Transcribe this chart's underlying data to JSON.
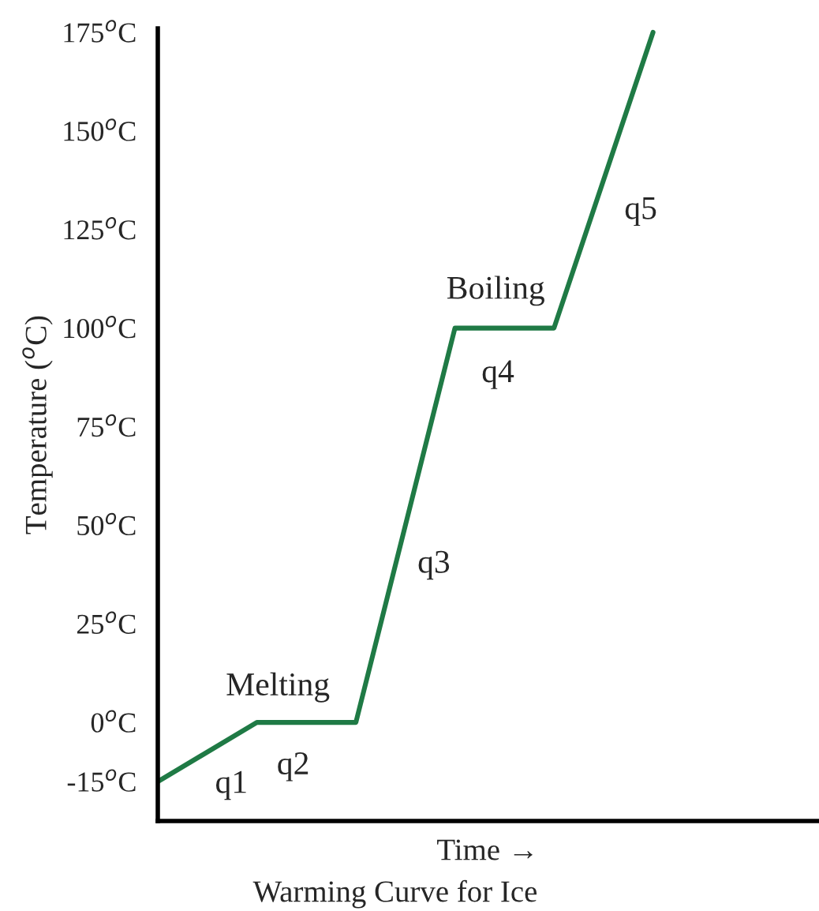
{
  "chart_data": {
    "type": "line",
    "title": "Warming Curve for Ice",
    "xlabel": "Time →",
    "ylabel": "Temperature ($^{o}$C)",
    "categories": [
      null,
      null,
      null,
      null,
      null,
      null
    ],
    "series": [
      {
        "color": "#1f7a45",
        "values": [
          -15,
          0,
          0,
          100,
          100,
          175
        ]
      }
    ],
    "ylim": [
      -25,
      176
    ],
    "yticks": [
      {
        "value": -15,
        "label": "-15$^{o}$C"
      },
      {
        "value": 0,
        "label": "0$^{o}$C"
      },
      {
        "value": 25,
        "label": "25$^{o}$C"
      },
      {
        "value": 50,
        "label": "50$^{o}$C"
      },
      {
        "value": 75,
        "label": "75$^{o}$C"
      },
      {
        "value": 100,
        "label": "100$^{o}$C"
      },
      {
        "value": 125,
        "label": "125$^{o}$C"
      },
      {
        "value": 150,
        "label": "150$^{o}$C"
      },
      {
        "value": 175,
        "label": "175$^{o}$C"
      }
    ],
    "annotations": [
      "Melting",
      "Boiling",
      "q1",
      "q2",
      "q3",
      "q4",
      "q5"
    ],
    "tick_labels": "y",
    "grid": false,
    "legend": false,
    "marker": "none",
    "line_style": "solid"
  }
}
